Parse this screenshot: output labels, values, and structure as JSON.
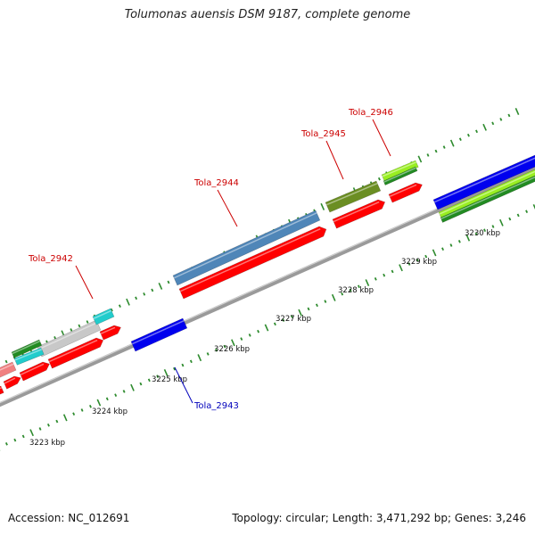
{
  "title": "Tolumonas auensis DSM 9187, complete genome",
  "footer": {
    "accession": "Accession: NC_012691",
    "summary": "Topology: circular; Length: 3,471,292 bp; Genes: 3,246"
  },
  "colors": {
    "backbone": "#8a8a8a",
    "tick": "#2e8b2e",
    "forward_label": "#cc0000",
    "reverse_label": "#0000bb",
    "cds": "#ff0000",
    "gene_blue": "#0000ee",
    "gene_steel": "#4f86b8",
    "gene_olive": "#6b8e23",
    "gene_lime": "#99ee22",
    "gene_green": "#228b22",
    "gene_cyan": "#22cccc",
    "gene_gray": "#c8c8c8",
    "gene_pink": "#f08080"
  },
  "scale_labels": [
    "3223 kbp",
    "3224 kbp",
    "3225 kbp",
    "3226 kbp",
    "3227 kbp",
    "3228 kbp",
    "3229 kbp",
    "3230 kbp"
  ],
  "gene_labels": [
    {
      "name": "Tola_2942",
      "strand": "forward"
    },
    {
      "name": "Tola_2943",
      "strand": "reverse"
    },
    {
      "name": "Tola_2944",
      "strand": "forward"
    },
    {
      "name": "Tola_2945",
      "strand": "forward"
    },
    {
      "name": "Tola_2946",
      "strand": "forward"
    }
  ]
}
